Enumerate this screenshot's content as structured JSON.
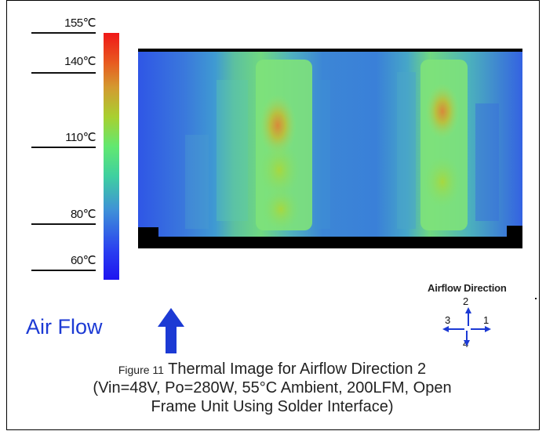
{
  "scale": {
    "labels": [
      "155℃",
      "140℃",
      "110℃",
      "80℃",
      "60℃"
    ]
  },
  "airflow_label": "Air Flow",
  "direction": {
    "title": "Airflow Direction",
    "numbers": [
      "2",
      "3",
      "1",
      "4"
    ]
  },
  "caption": {
    "figure_label": "Figure 11",
    "title": "Thermal Image for Airflow Direction 2",
    "line2": "(Vin=48V, Po=280W, 55°C Ambient, 200LFM, Open",
    "line3": "Frame Unit Using Solder Interface)"
  },
  "colors": {
    "accent_blue": "#1c3ad4",
    "hot": "#f01818",
    "cold": "#1e14f0"
  }
}
